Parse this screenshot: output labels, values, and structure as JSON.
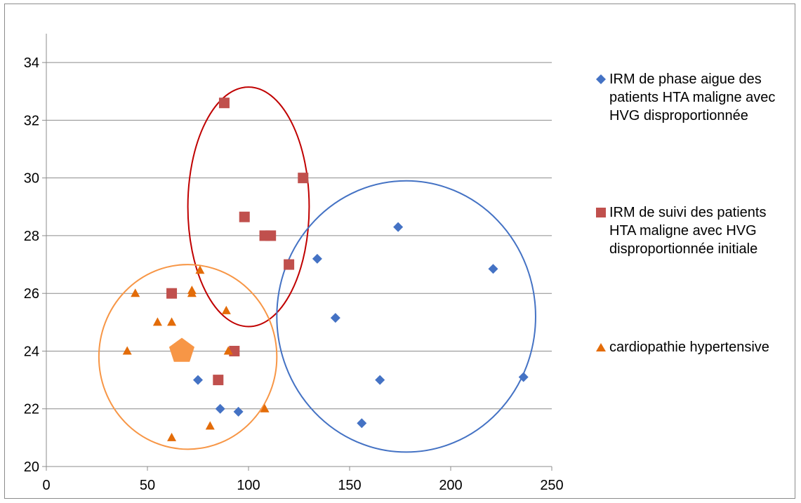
{
  "chart_data": {
    "type": "scatter",
    "xlim": [
      0,
      250
    ],
    "ylim": [
      20,
      35
    ],
    "x_ticks": [
      0,
      50,
      100,
      150,
      200,
      250
    ],
    "y_ticks": [
      20,
      22,
      24,
      26,
      28,
      30,
      32,
      34
    ],
    "grid": "horizontal",
    "legend_position": "right",
    "series": [
      {
        "name": "IRM de phase aigue des patients HTA maligne avec HVG disproportionnée",
        "marker": "diamond",
        "color": "#4472c4",
        "points": [
          [
            75,
            23
          ],
          [
            86,
            22
          ],
          [
            95,
            21.9
          ],
          [
            134,
            27.2
          ],
          [
            143,
            25.15
          ],
          [
            156,
            21.5
          ],
          [
            165,
            23
          ],
          [
            174,
            28.3
          ],
          [
            221,
            26.85
          ],
          [
            236,
            23.1
          ]
        ]
      },
      {
        "name": "IRM de suivi des patients HTA maligne  avec HVG disproportionnée initiale",
        "marker": "square",
        "color": "#c0504d",
        "points": [
          [
            88,
            32.6
          ],
          [
            127,
            30
          ],
          [
            98,
            28.65
          ],
          [
            108,
            28
          ],
          [
            111,
            28
          ],
          [
            120,
            27
          ],
          [
            62,
            26
          ],
          [
            93,
            24
          ],
          [
            85,
            23
          ]
        ]
      },
      {
        "name": "cardiopathie hypertensive",
        "marker": "triangle",
        "color": "#e36c09",
        "points": [
          [
            44,
            26
          ],
          [
            72,
            26.1
          ],
          [
            72,
            26
          ],
          [
            76,
            26.8
          ],
          [
            89,
            25.4
          ],
          [
            55,
            25
          ],
          [
            62,
            25
          ],
          [
            40,
            24
          ],
          [
            90,
            24
          ],
          [
            108,
            22
          ],
          [
            81,
            21.4
          ],
          [
            62,
            21
          ]
        ]
      }
    ],
    "highlight_marker": {
      "shape": "pentagon",
      "color": "#f79646",
      "x": 67,
      "y": 24
    },
    "ellipses": [
      {
        "color": "#c00000",
        "cx": 100,
        "cy": 29,
        "rx": 30,
        "ry": 4.15
      },
      {
        "color": "#4472c4",
        "cx": 178,
        "cy": 25.2,
        "rx": 64,
        "ry": 4.7
      },
      {
        "color": "#f79646",
        "cx": 70,
        "cy": 23.8,
        "rx": 44,
        "ry": 3.2
      }
    ]
  }
}
